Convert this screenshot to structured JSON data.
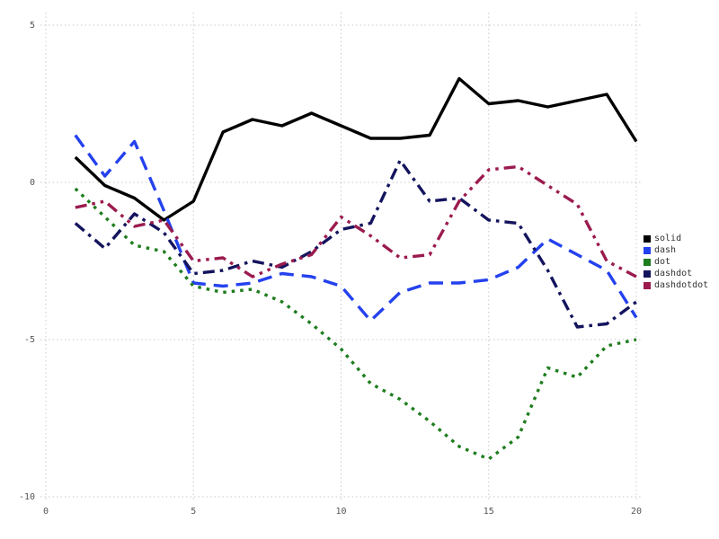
{
  "chart_data": {
    "type": "line",
    "title": "",
    "xlabel": "",
    "ylabel": "",
    "xlim": [
      0,
      20
    ],
    "ylim": [
      -10,
      5
    ],
    "xticks": [
      0,
      5,
      10,
      15,
      20
    ],
    "yticks": [
      -10,
      -5,
      0,
      5
    ],
    "grid": true,
    "legend_position": "right",
    "x": [
      1,
      2,
      3,
      4,
      5,
      6,
      7,
      8,
      9,
      10,
      11,
      12,
      13,
      14,
      15,
      16,
      17,
      18,
      19,
      20
    ],
    "series": [
      {
        "name": "solid",
        "style": "solid",
        "color": "#000000",
        "values": [
          0.8,
          -0.1,
          -0.5,
          -1.2,
          -0.6,
          1.6,
          2.0,
          1.8,
          2.2,
          1.8,
          1.4,
          1.4,
          1.5,
          3.3,
          2.5,
          2.6,
          2.4,
          2.6,
          2.8,
          1.3
        ]
      },
      {
        "name": "dash",
        "style": "dash",
        "color": "#2441ee",
        "values": [
          1.5,
          0.2,
          1.3,
          -0.9,
          -3.2,
          -3.3,
          -3.2,
          -2.9,
          -3.0,
          -3.3,
          -4.4,
          -3.5,
          -3.2,
          -3.2,
          -3.1,
          -2.7,
          -1.8,
          -2.3,
          -2.8,
          -4.3
        ]
      },
      {
        "name": "dot",
        "style": "dot",
        "color": "#1e7d1e",
        "values": [
          -0.2,
          -1.1,
          -2.0,
          -2.2,
          -3.3,
          -3.5,
          -3.4,
          -3.8,
          -4.5,
          -5.3,
          -6.4,
          -6.9,
          -7.6,
          -8.4,
          -8.8,
          -8.1,
          -5.9,
          -6.2,
          -5.2,
          -5.0
        ]
      },
      {
        "name": "dashdot",
        "style": "dashdot",
        "color": "#14145e",
        "values": [
          -1.3,
          -2.1,
          -1.0,
          -1.6,
          -2.9,
          -2.8,
          -2.5,
          -2.7,
          -2.2,
          -1.5,
          -1.3,
          0.7,
          -0.6,
          -0.5,
          -1.2,
          -1.3,
          -2.8,
          -4.6,
          -4.5,
          -3.8
        ]
      },
      {
        "name": "dashdotdot",
        "style": "dashdotdot",
        "color": "#9b1b4f",
        "values": [
          -0.8,
          -0.6,
          -1.4,
          -1.2,
          -2.5,
          -2.4,
          -3.0,
          -2.6,
          -2.3,
          -1.1,
          -1.7,
          -2.4,
          -2.3,
          -0.6,
          0.4,
          0.5,
          -0.1,
          -0.7,
          -2.5,
          -3.0
        ]
      }
    ]
  }
}
